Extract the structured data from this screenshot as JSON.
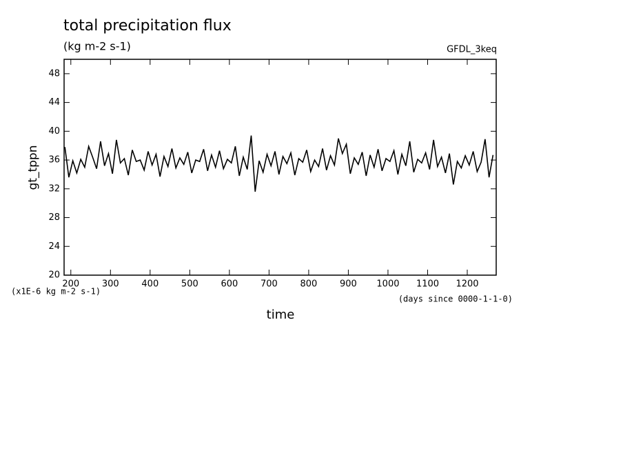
{
  "chart_data": {
    "type": "line",
    "title": "total precipitation flux",
    "subtitle": "(kg m-2 s-1)",
    "annotation": "GFDL_3keq",
    "ylabel": "gt_tppn",
    "yunits": "(x1E-6 kg m-2 s-1)",
    "xlabel": "time",
    "xunits": "(days since 0000-1-1-0)",
    "x": [
      185,
      195,
      205,
      215,
      225,
      235,
      245,
      255,
      265,
      275,
      285,
      295,
      305,
      315,
      325,
      335,
      345,
      355,
      365,
      375,
      385,
      395,
      405,
      415,
      425,
      435,
      445,
      455,
      465,
      475,
      485,
      495,
      505,
      515,
      525,
      535,
      545,
      555,
      565,
      575,
      585,
      595,
      605,
      615,
      625,
      635,
      645,
      655,
      665,
      675,
      685,
      695,
      705,
      715,
      725,
      735,
      745,
      755,
      765,
      775,
      785,
      795,
      805,
      815,
      825,
      835,
      845,
      855,
      865,
      875,
      885,
      895,
      905,
      915,
      925,
      935,
      945,
      955,
      965,
      975,
      985,
      995,
      1005,
      1015,
      1025,
      1035,
      1045,
      1055,
      1065,
      1075,
      1085,
      1095,
      1105,
      1115,
      1125,
      1135,
      1145,
      1155,
      1165,
      1175,
      1185,
      1195,
      1205,
      1215,
      1225,
      1235,
      1245,
      1255,
      1265
    ],
    "series": [
      {
        "color": "#000000",
        "values": [
          37.8,
          33.6,
          35.9,
          34.2,
          36.1,
          35.0,
          37.9,
          36.4,
          34.8,
          38.6,
          35.2,
          36.9,
          34.1,
          38.8,
          35.6,
          36.2,
          33.9,
          37.4,
          35.8,
          36.0,
          34.6,
          37.2,
          35.3,
          36.8,
          33.7,
          36.5,
          35.1,
          37.6,
          34.9,
          36.3,
          35.4,
          37.1,
          34.2,
          36.0,
          35.8,
          37.5,
          34.5,
          36.7,
          35.0,
          37.3,
          34.8,
          36.1,
          35.6,
          37.9,
          33.8,
          36.4,
          34.7,
          39.4,
          31.6,
          35.9,
          34.3,
          36.8,
          35.2,
          37.2,
          34.0,
          36.5,
          35.5,
          37.0,
          33.9,
          36.2,
          35.7,
          37.4,
          34.4,
          36.0,
          35.1,
          37.6,
          34.6,
          36.6,
          35.3,
          39.0,
          36.9,
          38.2,
          34.1,
          36.3,
          35.4,
          37.1,
          33.8,
          36.7,
          35.0,
          37.5,
          34.5,
          36.2,
          35.8,
          37.3,
          34.0,
          36.8,
          35.2,
          38.6,
          34.3,
          36.1,
          35.6,
          37.0,
          34.7,
          38.8,
          35.1,
          36.4,
          34.2,
          36.9,
          32.6,
          35.8,
          34.9,
          36.6,
          35.3,
          37.2,
          34.4,
          35.7,
          38.9,
          33.6,
          36.7
        ]
      }
    ],
    "xlim": [
      183,
      1273
    ],
    "ylim": [
      20,
      50
    ],
    "xticks": [
      200,
      300,
      400,
      500,
      600,
      700,
      800,
      900,
      1000,
      1100,
      1200
    ],
    "yticks": [
      20,
      24,
      28,
      32,
      36,
      40,
      44,
      48
    ]
  }
}
